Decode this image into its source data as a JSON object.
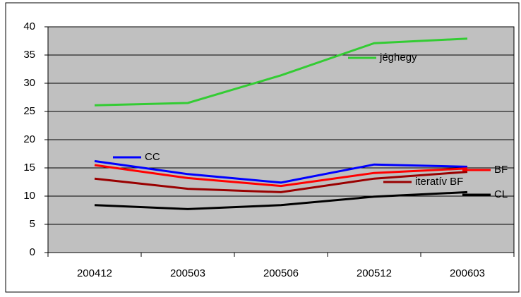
{
  "chart_data": {
    "type": "line",
    "categories": [
      "200412",
      "200503",
      "200506",
      "200512",
      "200603"
    ],
    "series": [
      {
        "name": "jéghegy",
        "color": "#33cc33",
        "values": [
          26.1,
          26.5,
          31.4,
          37.1,
          37.9
        ]
      },
      {
        "name": "CC",
        "color": "#0000ff",
        "values": [
          16.2,
          13.9,
          12.4,
          15.6,
          15.2
        ]
      },
      {
        "name": "BF",
        "color": "#ff0000",
        "values": [
          15.5,
          13.2,
          11.8,
          14.1,
          14.9
        ]
      },
      {
        "name": "iteratív BF",
        "color": "#990000",
        "values": [
          13.1,
          11.3,
          10.7,
          13.1,
          14.3
        ]
      },
      {
        "name": "CL",
        "color": "#000000",
        "values": [
          8.4,
          7.7,
          8.4,
          9.9,
          10.7
        ]
      }
    ],
    "ylim": [
      0,
      40
    ],
    "yticks": [
      0,
      5,
      10,
      15,
      20,
      25,
      30,
      35,
      40
    ],
    "grid": true,
    "plot_background": "#c0c0c0"
  }
}
